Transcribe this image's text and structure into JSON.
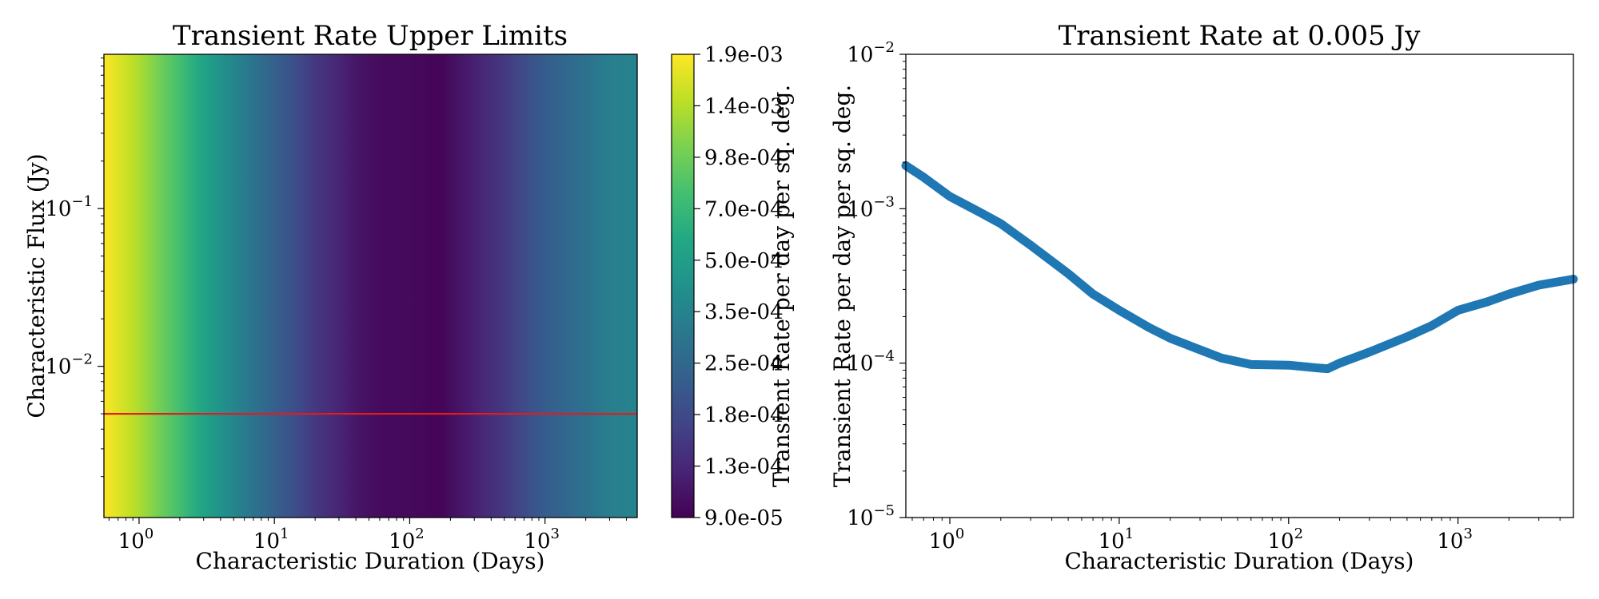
{
  "chart_data": [
    {
      "type": "heatmap",
      "title": "Transient Rate Upper Limits",
      "xlabel": "Characteristic Duration (Days)",
      "ylabel": "Characteristic Flux (Jy)",
      "xscale": "log",
      "yscale": "log",
      "xlim": [
        0.55,
        4800
      ],
      "ylim": [
        0.0011,
        0.95
      ],
      "xticks": [
        {
          "base": "10",
          "exp": "0",
          "value": 1
        },
        {
          "base": "10",
          "exp": "1",
          "value": 10
        },
        {
          "base": "10",
          "exp": "2",
          "value": 100
        },
        {
          "base": "10",
          "exp": "3",
          "value": 1000
        }
      ],
      "yticks": [
        {
          "base": "10",
          "exp": "−2",
          "value": 0.01
        },
        {
          "base": "10",
          "exp": "−1",
          "value": 0.1
        }
      ],
      "colormap": "viridis",
      "colorbar": {
        "label": "Transient Rate per day per sq. deg.",
        "ticks": [
          "9.0e-05",
          "1.3e-04",
          "1.8e-04",
          "2.5e-04",
          "3.5e-04",
          "5.0e-04",
          "7.0e-04",
          "9.8e-04",
          "1.4e-03",
          "1.9e-03"
        ],
        "min": 9e-05,
        "max": 0.0019,
        "scale": "log"
      },
      "profile_duration_days": [
        0.55,
        1,
        2,
        3,
        5,
        10,
        20,
        40,
        60,
        100,
        170,
        300,
        500,
        1000,
        2000,
        3000,
        4800
      ],
      "profile_rate": [
        0.0019,
        0.0013,
        0.00075,
        0.00052,
        0.00036,
        0.00023,
        0.000148,
        0.000108,
        9.8e-05,
        9.7e-05,
        9.3e-05,
        0.000118,
        0.000148,
        0.00022,
        0.00028,
        0.00033,
        0.00035
      ],
      "hline": {
        "y": 0.005,
        "color": "#e41a1c"
      }
    },
    {
      "type": "line",
      "title": "Transient Rate at 0.005 Jy",
      "xlabel": "Characteristic Duration (Days)",
      "ylabel": "Transient Rate per day per sq. deg.",
      "xscale": "log",
      "yscale": "log",
      "xlim": [
        0.55,
        4800
      ],
      "ylim": [
        1e-05,
        0.01
      ],
      "xticks": [
        {
          "base": "10",
          "exp": "0",
          "value": 1
        },
        {
          "base": "10",
          "exp": "1",
          "value": 10
        },
        {
          "base": "10",
          "exp": "2",
          "value": 100
        },
        {
          "base": "10",
          "exp": "3",
          "value": 1000
        }
      ],
      "yticks": [
        {
          "base": "10",
          "exp": "−5",
          "value": 1e-05
        },
        {
          "base": "10",
          "exp": "−4",
          "value": 0.0001
        },
        {
          "base": "10",
          "exp": "−3",
          "value": 0.001
        },
        {
          "base": "10",
          "exp": "−2",
          "value": 0.01
        }
      ],
      "series": [
        {
          "color": "#1f77b4",
          "x": [
            0.55,
            0.7,
            1,
            1.5,
            2,
            3,
            5,
            7,
            10,
            15,
            20,
            30,
            40,
            60,
            100,
            150,
            170,
            200,
            300,
            500,
            700,
            1000,
            1500,
            2000,
            3000,
            4800
          ],
          "y": [
            0.0019,
            0.0016,
            0.0012,
            0.00095,
            0.0008,
            0.00058,
            0.00038,
            0.00028,
            0.00022,
            0.00017,
            0.000145,
            0.000122,
            0.000108,
            9.8e-05,
            9.7e-05,
            9.3e-05,
            9.2e-05,
            0.0001,
            0.000118,
            0.000148,
            0.000175,
            0.00022,
            0.00025,
            0.00028,
            0.00032,
            0.00035
          ]
        }
      ]
    }
  ]
}
